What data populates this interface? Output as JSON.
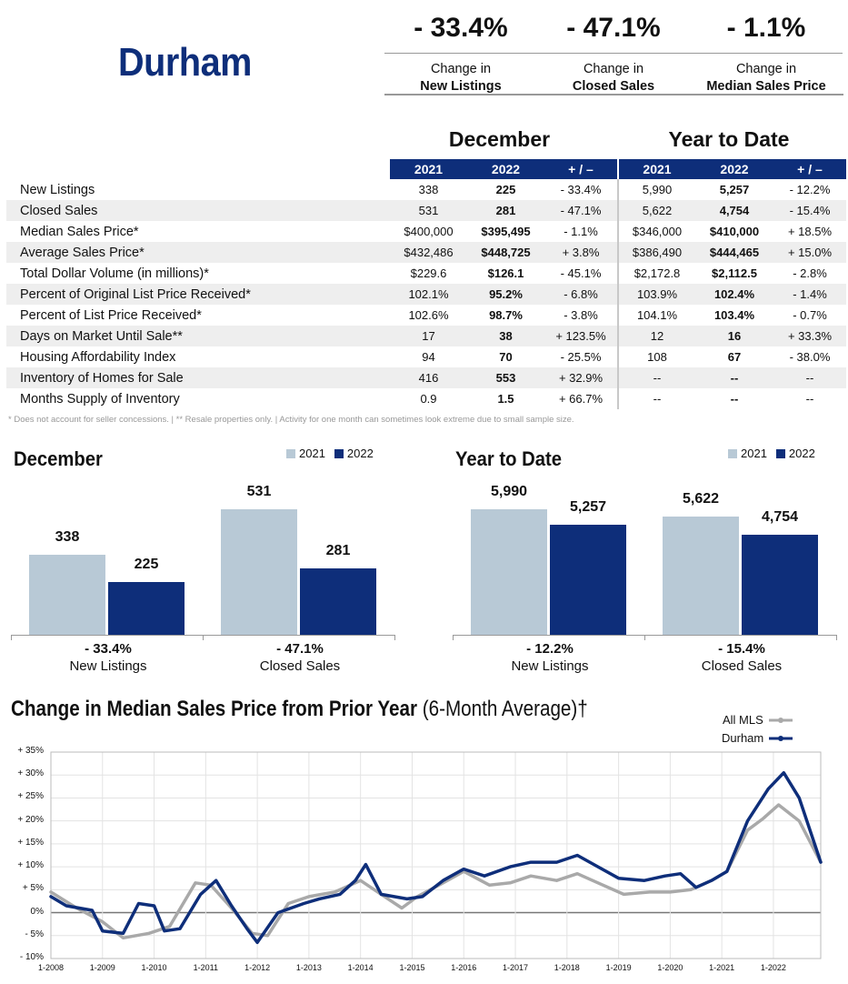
{
  "title": "Durham",
  "kpis": [
    {
      "pct": "- 33.4%",
      "line1": "Change in",
      "line2": "New Listings"
    },
    {
      "pct": "- 47.1%",
      "line1": "Change in",
      "line2": "Closed Sales"
    },
    {
      "pct": "- 1.1%",
      "line1": "Change in",
      "line2": "Median Sales Price"
    }
  ],
  "table": {
    "section1": "December",
    "section2": "Year to Date",
    "headers": [
      "2021",
      "2022",
      "+ / –",
      "2021",
      "2022",
      "+ / –"
    ],
    "rows": [
      {
        "label": "New Listings",
        "v": [
          "338",
          "225",
          "- 33.4%",
          "5,990",
          "5,257",
          "- 12.2%"
        ]
      },
      {
        "label": "Closed Sales",
        "v": [
          "531",
          "281",
          "- 47.1%",
          "5,622",
          "4,754",
          "- 15.4%"
        ]
      },
      {
        "label": "Median Sales Price*",
        "v": [
          "$400,000",
          "$395,495",
          "- 1.1%",
          "$346,000",
          "$410,000",
          "+ 18.5%"
        ]
      },
      {
        "label": "Average Sales Price*",
        "v": [
          "$432,486",
          "$448,725",
          "+ 3.8%",
          "$386,490",
          "$444,465",
          "+ 15.0%"
        ]
      },
      {
        "label": "Total Dollar Volume (in millions)*",
        "v": [
          "$229.6",
          "$126.1",
          "- 45.1%",
          "$2,172.8",
          "$2,112.5",
          "- 2.8%"
        ]
      },
      {
        "label": "Percent of Original List Price Received*",
        "v": [
          "102.1%",
          "95.2%",
          "- 6.8%",
          "103.9%",
          "102.4%",
          "- 1.4%"
        ]
      },
      {
        "label": "Percent of List Price Received*",
        "v": [
          "102.6%",
          "98.7%",
          "- 3.8%",
          "104.1%",
          "103.4%",
          "- 0.7%"
        ]
      },
      {
        "label": "Days on Market Until Sale**",
        "v": [
          "17",
          "38",
          "+ 123.5%",
          "12",
          "16",
          "+ 33.3%"
        ]
      },
      {
        "label": "Housing Affordability Index",
        "v": [
          "94",
          "70",
          "- 25.5%",
          "108",
          "67",
          "- 38.0%"
        ]
      },
      {
        "label": "Inventory of Homes for Sale",
        "v": [
          "416",
          "553",
          "+ 32.9%",
          "--",
          "--",
          "--"
        ]
      },
      {
        "label": "Months Supply of Inventory",
        "v": [
          "0.9",
          "1.5",
          "+ 66.7%",
          "--",
          "--",
          "--"
        ]
      }
    ],
    "footnote": "* Does not account for seller concessions.  |  ** Resale properties only.  |  Activity for one month can sometimes look extreme due to small sample size."
  },
  "colors": {
    "navy": "#0e2e7a",
    "light": "#b8c9d6",
    "gray": "#a9a9a9"
  },
  "chart_data": [
    {
      "type": "bar",
      "title": "December",
      "legend": [
        "2021",
        "2022"
      ],
      "categories": [
        "New Listings",
        "Closed Sales"
      ],
      "changes": [
        "- 33.4%",
        "- 47.1%"
      ],
      "series": [
        {
          "name": "2021",
          "values": [
            338,
            531
          ],
          "labels": [
            "338",
            "531"
          ]
        },
        {
          "name": "2022",
          "values": [
            225,
            281
          ],
          "labels": [
            "225",
            "281"
          ]
        }
      ]
    },
    {
      "type": "bar",
      "title": "Year to Date",
      "legend": [
        "2021",
        "2022"
      ],
      "categories": [
        "New Listings",
        "Closed Sales"
      ],
      "changes": [
        "- 12.2%",
        "- 15.4%"
      ],
      "series": [
        {
          "name": "2021",
          "values": [
            5990,
            5622
          ],
          "labels": [
            "5,990",
            "5,622"
          ]
        },
        {
          "name": "2022",
          "values": [
            5257,
            4754
          ],
          "labels": [
            "5,257",
            "4,754"
          ]
        }
      ]
    },
    {
      "type": "line",
      "title": "Change in Median Sales Price from Prior Year",
      "subtitle": "(6-Month Average)†",
      "ylim": [
        -10,
        35
      ],
      "y_ticks": [
        "+ 35%",
        "+ 30%",
        "+ 25%",
        "+ 20%",
        "+ 15%",
        "+ 10%",
        "+ 5%",
        "0%",
        "- 5%",
        "- 10%"
      ],
      "x_ticks": [
        "1-2008",
        "1-2009",
        "1-2010",
        "1-2011",
        "1-2012",
        "1-2013",
        "1-2014",
        "1-2015",
        "1-2016",
        "1-2017",
        "1-2018",
        "1-2019",
        "1-2020",
        "1-2021",
        "1-2022"
      ],
      "x_start": 2008.0,
      "x_end": 2022.917,
      "series": [
        {
          "name": "All MLS",
          "points": [
            [
              2008,
              4.5
            ],
            [
              2008.5,
              1
            ],
            [
              2009,
              -2
            ],
            [
              2009.4,
              -5.5
            ],
            [
              2009.9,
              -4.5
            ],
            [
              2010.3,
              -3
            ],
            [
              2010.8,
              6.5
            ],
            [
              2011.1,
              6
            ],
            [
              2011.5,
              1
            ],
            [
              2011.9,
              -4.5
            ],
            [
              2012.2,
              -5
            ],
            [
              2012.6,
              2
            ],
            [
              2013.0,
              3.5
            ],
            [
              2013.5,
              4.5
            ],
            [
              2014.0,
              7
            ],
            [
              2014.4,
              4
            ],
            [
              2014.8,
              1
            ],
            [
              2015.1,
              3.5
            ],
            [
              2015.6,
              6.5
            ],
            [
              2016.0,
              9
            ],
            [
              2016.5,
              6
            ],
            [
              2016.9,
              6.5
            ],
            [
              2017.3,
              8
            ],
            [
              2017.8,
              7
            ],
            [
              2018.2,
              8.5
            ],
            [
              2018.6,
              6.5
            ],
            [
              2019.1,
              4
            ],
            [
              2019.6,
              4.5
            ],
            [
              2020.0,
              4.5
            ],
            [
              2020.4,
              5
            ],
            [
              2020.8,
              7
            ],
            [
              2021.1,
              9
            ],
            [
              2021.5,
              18
            ],
            [
              2021.8,
              20.5
            ],
            [
              2022.1,
              23.5
            ],
            [
              2022.5,
              20
            ],
            [
              2022.917,
              11
            ]
          ]
        },
        {
          "name": "Durham",
          "points": [
            [
              2008,
              3.5
            ],
            [
              2008.3,
              1.5
            ],
            [
              2008.8,
              0.5
            ],
            [
              2009.0,
              -4
            ],
            [
              2009.4,
              -4.5
            ],
            [
              2009.7,
              2
            ],
            [
              2010.0,
              1.5
            ],
            [
              2010.2,
              -4
            ],
            [
              2010.5,
              -3.5
            ],
            [
              2010.9,
              4
            ],
            [
              2011.2,
              7
            ],
            [
              2011.5,
              1.5
            ],
            [
              2011.8,
              -3.5
            ],
            [
              2012.0,
              -6.5
            ],
            [
              2012.4,
              0
            ],
            [
              2012.9,
              2
            ],
            [
              2013.2,
              3
            ],
            [
              2013.6,
              4
            ],
            [
              2013.9,
              7
            ],
            [
              2014.1,
              10.5
            ],
            [
              2014.4,
              4
            ],
            [
              2014.9,
              3
            ],
            [
              2015.2,
              3.5
            ],
            [
              2015.6,
              7
            ],
            [
              2016.0,
              9.5
            ],
            [
              2016.4,
              8
            ],
            [
              2016.9,
              10
            ],
            [
              2017.3,
              11
            ],
            [
              2017.8,
              11
            ],
            [
              2018.2,
              12.5
            ],
            [
              2018.6,
              10
            ],
            [
              2019.0,
              7.5
            ],
            [
              2019.5,
              7
            ],
            [
              2019.9,
              8
            ],
            [
              2020.2,
              8.5
            ],
            [
              2020.5,
              5.5
            ],
            [
              2020.8,
              7
            ],
            [
              2021.1,
              9
            ],
            [
              2021.5,
              20
            ],
            [
              2021.9,
              27
            ],
            [
              2022.2,
              30.5
            ],
            [
              2022.5,
              25
            ],
            [
              2022.917,
              11
            ]
          ]
        }
      ]
    }
  ]
}
